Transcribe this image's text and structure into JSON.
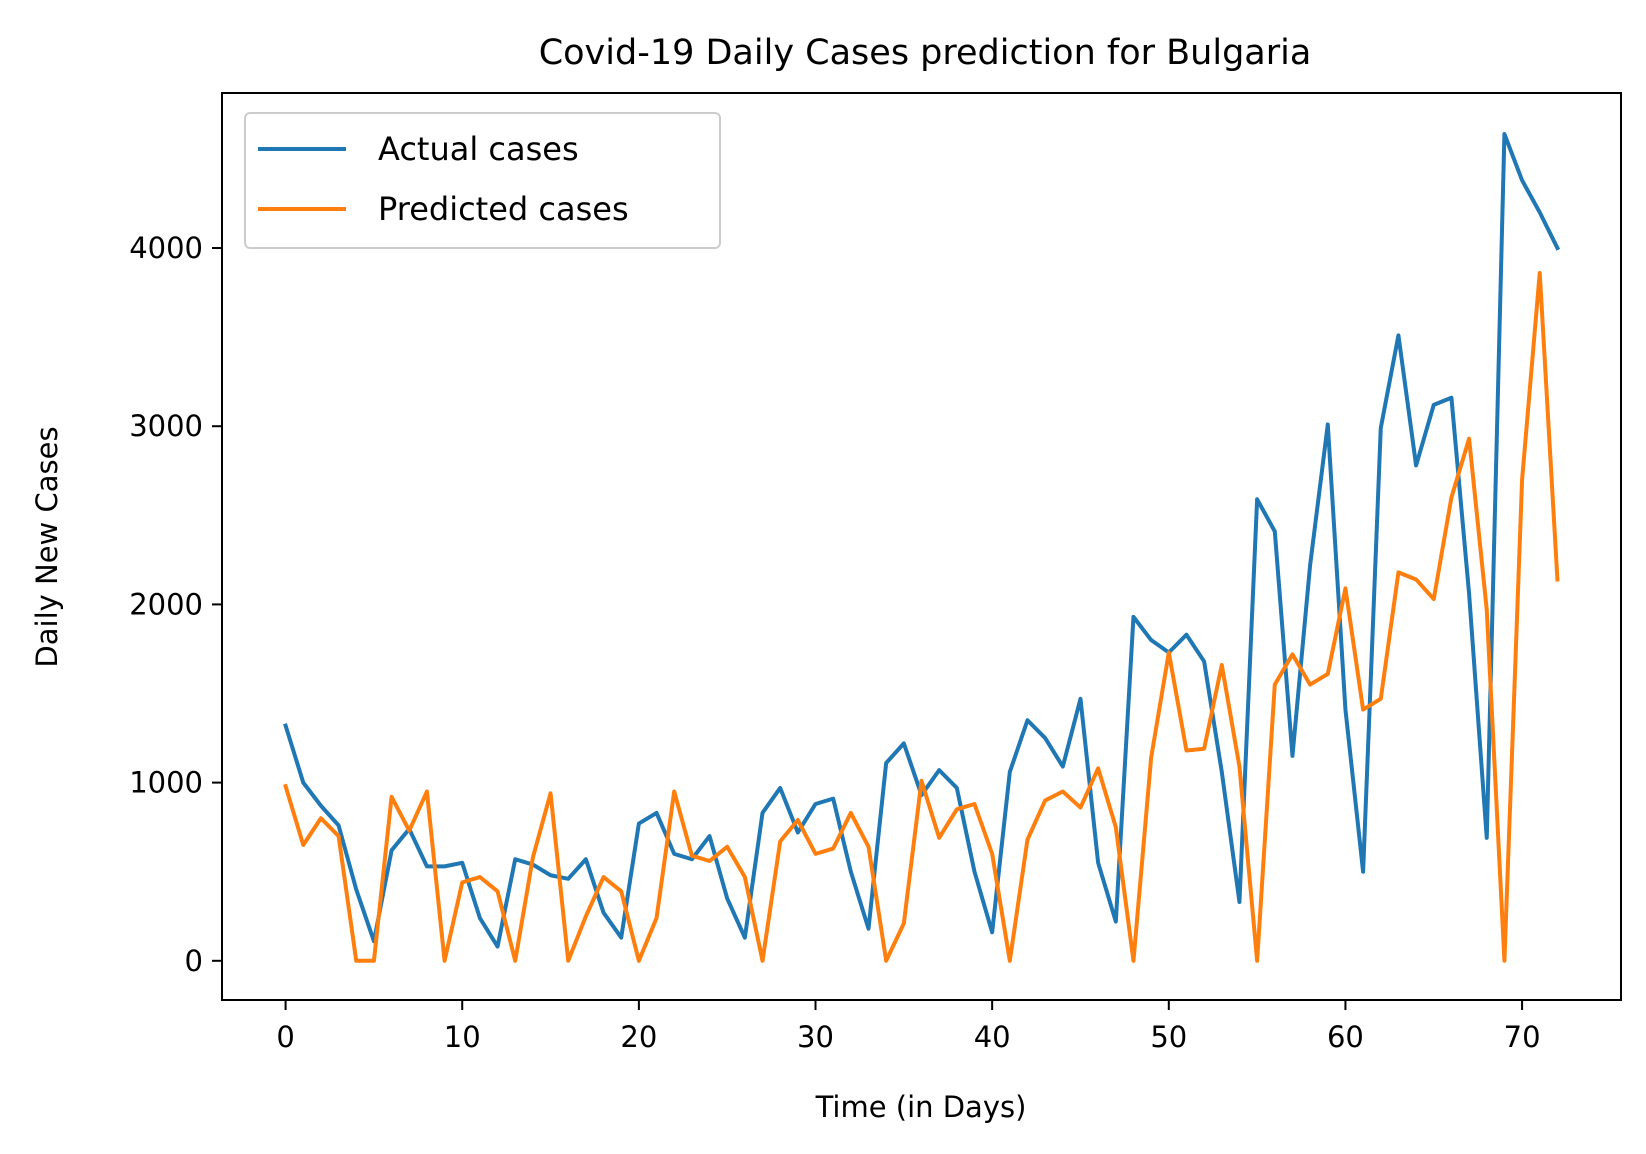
{
  "chart_data": {
    "type": "line",
    "title": "Covid-19 Daily Cases prediction for Bulgaria",
    "xlabel": "Time (in Days)",
    "ylabel": "Daily New Cases",
    "xlim": [
      -3.6,
      75.6
    ],
    "ylim": [
      -220,
      4870
    ],
    "x_ticks": [
      0,
      10,
      20,
      30,
      40,
      50,
      60,
      70
    ],
    "y_ticks": [
      0,
      1000,
      2000,
      3000,
      4000
    ],
    "grid": false,
    "legend_position": "upper-left",
    "x": [
      0,
      1,
      2,
      3,
      4,
      5,
      6,
      7,
      8,
      9,
      10,
      11,
      12,
      13,
      14,
      15,
      16,
      17,
      18,
      19,
      20,
      21,
      22,
      23,
      24,
      25,
      26,
      27,
      28,
      29,
      30,
      31,
      32,
      33,
      34,
      35,
      36,
      37,
      38,
      39,
      40,
      41,
      42,
      43,
      44,
      45,
      46,
      47,
      48,
      49,
      50,
      51,
      52,
      53,
      54,
      55,
      56,
      57,
      58,
      59,
      60,
      61,
      62,
      63,
      64,
      65,
      66,
      67,
      68,
      69,
      70,
      71,
      72
    ],
    "series": [
      {
        "name": "Actual cases",
        "color": "#1f77b4",
        "values": [
          1320,
          1000,
          870,
          760,
          400,
          110,
          620,
          740,
          530,
          530,
          550,
          240,
          80,
          570,
          540,
          480,
          460,
          570,
          270,
          130,
          770,
          830,
          600,
          570,
          700,
          350,
          130,
          830,
          970,
          720,
          880,
          910,
          500,
          180,
          1110,
          1220,
          930,
          1070,
          970,
          500,
          160,
          1060,
          1350,
          1250,
          1090,
          1470,
          550,
          220,
          1930,
          1800,
          1730,
          1830,
          1680,
          1060,
          330,
          2590,
          2410,
          1150,
          2220,
          3010,
          1410,
          500,
          2990,
          3510,
          2780,
          3120,
          3160,
          2060,
          690,
          4640,
          4380,
          4200,
          4000
        ]
      },
      {
        "name": "Predicted cases",
        "color": "#ff7f0e",
        "values": [
          980,
          650,
          800,
          700,
          0,
          0,
          920,
          730,
          950,
          0,
          440,
          470,
          390,
          0,
          580,
          940,
          0,
          250,
          470,
          390,
          0,
          240,
          950,
          590,
          560,
          640,
          470,
          0,
          670,
          790,
          600,
          630,
          830,
          640,
          0,
          210,
          1010,
          690,
          850,
          880,
          600,
          0,
          680,
          900,
          950,
          860,
          1080,
          750,
          0,
          1140,
          1730,
          1180,
          1190,
          1660,
          1090,
          0,
          1550,
          1720,
          1550,
          1610,
          2090,
          1410,
          1470,
          2180,
          2140,
          2030,
          2600,
          2930,
          1970,
          0,
          2700,
          3860,
          2140
        ]
      }
    ]
  }
}
